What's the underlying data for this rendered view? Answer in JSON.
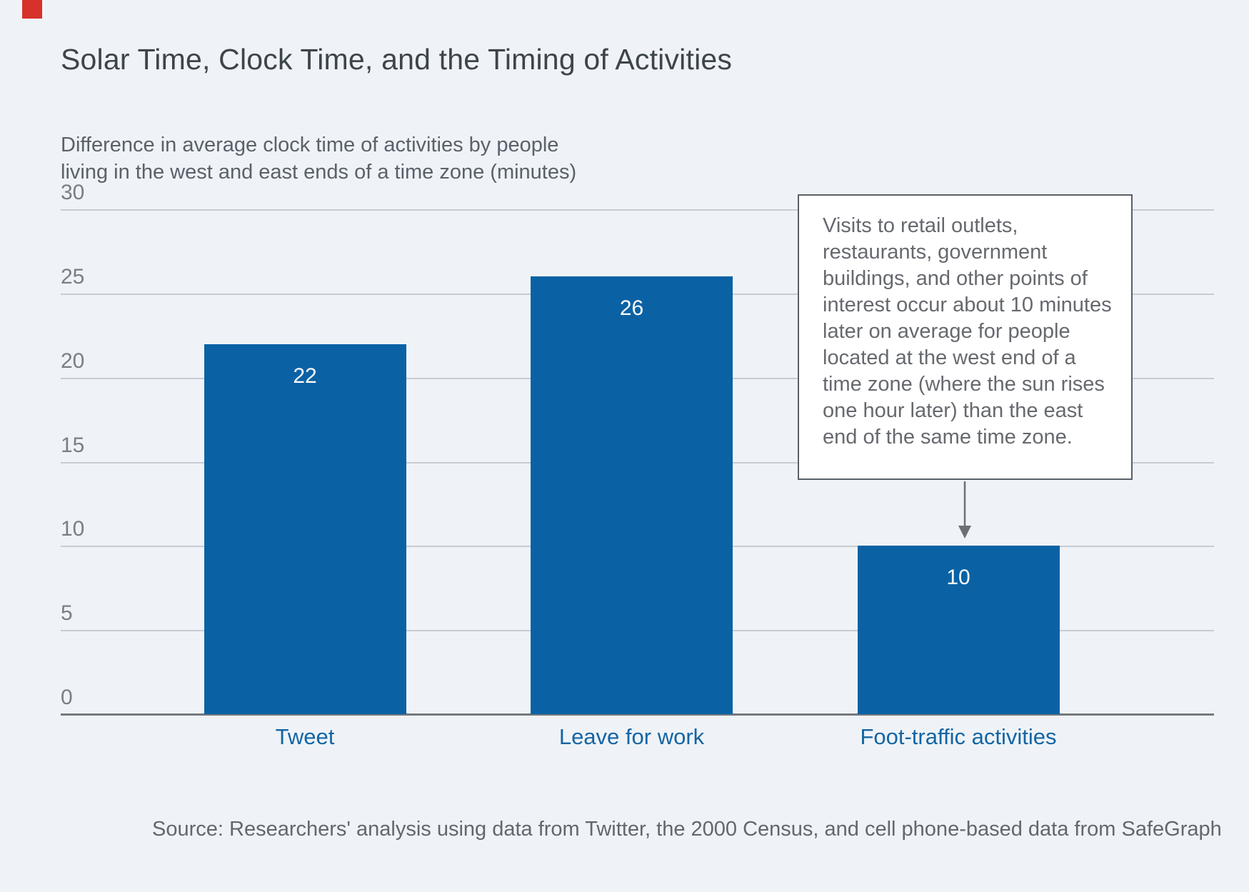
{
  "page": {
    "background_color": "#eff3f7",
    "brand_square_color": "#d7312c"
  },
  "chart_data": {
    "type": "bar",
    "title": "Solar Time, Clock Time, and the Timing of Activities",
    "subtitle_lines": [
      "Difference in average clock time of activities by people",
      "living in the west and east ends of a time zone (minutes)"
    ],
    "categories": [
      "Tweet",
      "Leave for work",
      "Foot-traffic activities"
    ],
    "values": [
      22,
      26,
      10
    ],
    "ylim": [
      0,
      30
    ],
    "yticks": [
      30,
      25,
      20,
      15,
      10,
      5,
      0
    ],
    "grid": "horizontal-only",
    "legend": "none",
    "bar_color": "#0a62a4",
    "value_label_color": "#ffffff",
    "category_label_color": "#1465a4",
    "gridline_color": "#c6ccd2",
    "axis_line_color": "#74797f",
    "annotation": {
      "text": "Visits to retail outlets, restaurants, government buildings, and other points of interest occur about 10 minutes later on average for people located at the west end of a time zone (where the sun rises one hour later) than the east end of the same time zone.",
      "target_category": "Foot-traffic activities",
      "arrow_color": "#6a7076"
    },
    "source": "Source: Researchers' analysis using data from Twitter, the 2000 Census, and cell phone-based data from SafeGraph"
  }
}
